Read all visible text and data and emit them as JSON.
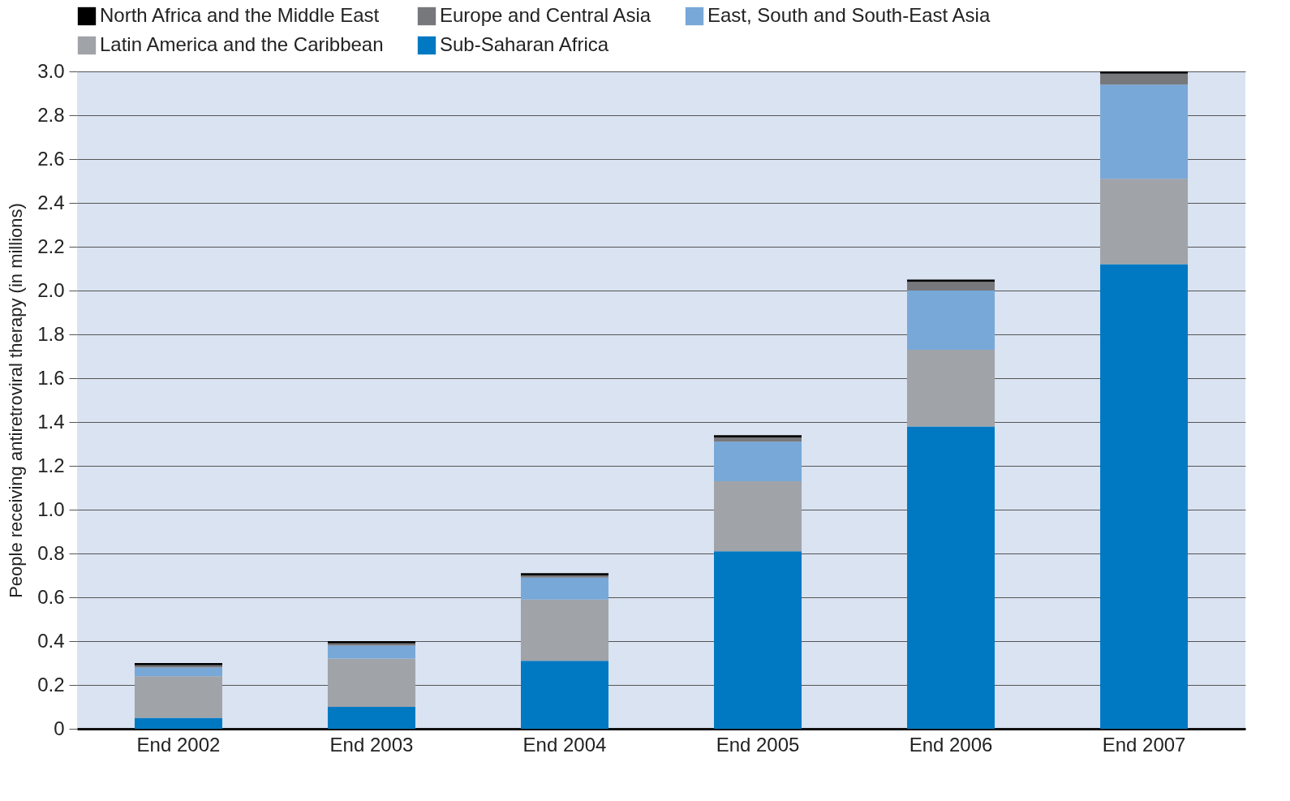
{
  "chart_data": {
    "type": "bar",
    "stacked": true,
    "ylabel": "People receiving antiretroviral therapy (in millions)",
    "categories": [
      "End 2002",
      "End 2003",
      "End 2004",
      "End 2005",
      "End 2006",
      "End 2007"
    ],
    "series": [
      {
        "name": "Sub-Saharan Africa",
        "color": "#0079c2",
        "values": [
          0.05,
          0.1,
          0.31,
          0.81,
          1.38,
          2.12
        ]
      },
      {
        "name": "Latin America and the Caribbean",
        "color": "#a0a3a8",
        "values": [
          0.19,
          0.22,
          0.28,
          0.32,
          0.35,
          0.39
        ]
      },
      {
        "name": "East, South and South-East Asia",
        "color": "#78a8d8",
        "values": [
          0.04,
          0.06,
          0.1,
          0.18,
          0.27,
          0.43
        ]
      },
      {
        "name": "Europe and Central Asia",
        "color": "#77787c",
        "values": [
          0.01,
          0.01,
          0.01,
          0.02,
          0.04,
          0.05
        ]
      },
      {
        "name": "North Africa and the Middle East",
        "color": "#000000",
        "values": [
          0.01,
          0.01,
          0.01,
          0.01,
          0.01,
          0.01
        ]
      }
    ],
    "ylim": [
      0,
      3.0
    ],
    "yticks": [
      0,
      {
        "value": 0.2,
        "label": "0.2"
      },
      {
        "value": 0.4,
        "label": "0.4"
      },
      {
        "value": 0.6,
        "label": "0.6"
      },
      {
        "value": 0.8,
        "label": "0.8"
      },
      {
        "value": 1.0,
        "label": "1.0"
      },
      {
        "value": 1.2,
        "label": "1.2"
      },
      {
        "value": 1.4,
        "label": "1.4"
      },
      {
        "value": 1.6,
        "label": "1.6"
      },
      {
        "value": 1.8,
        "label": "1.8"
      },
      {
        "value": 2.0,
        "label": "2.0"
      },
      {
        "value": 2.2,
        "label": "2.2"
      },
      {
        "value": 2.4,
        "label": "2.4"
      },
      {
        "value": 2.6,
        "label": "2.6"
      },
      {
        "value": 2.8,
        "label": "2.8"
      },
      {
        "value": 3.0,
        "label": "3.0"
      }
    ],
    "grid": "y",
    "legend": "top"
  }
}
